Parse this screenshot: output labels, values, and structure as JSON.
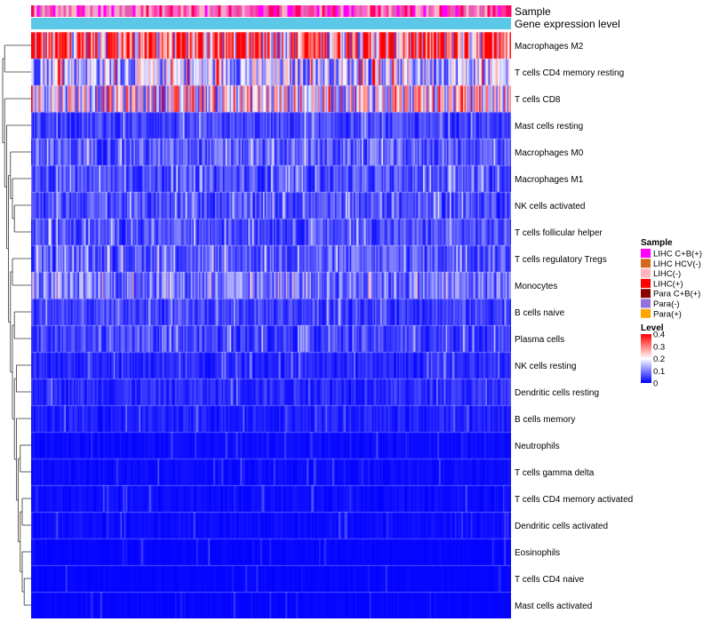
{
  "chart_data": {
    "type": "heatmap",
    "title": "",
    "annotation_tracks": [
      "Sample",
      "Gene expression level"
    ],
    "rows": [
      {
        "label": "Macrophages M2",
        "mean": 0.32
      },
      {
        "label": "T cells CD4 memory resting",
        "mean": 0.15
      },
      {
        "label": "T cells CD8",
        "mean": 0.2
      },
      {
        "label": "Mast cells resting",
        "mean": 0.05
      },
      {
        "label": "Macrophages M0",
        "mean": 0.07
      },
      {
        "label": "Macrophages M1",
        "mean": 0.06
      },
      {
        "label": "NK cells activated",
        "mean": 0.06
      },
      {
        "label": "T cells follicular helper",
        "mean": 0.06
      },
      {
        "label": "T cells regulatory  Tregs",
        "mean": 0.07
      },
      {
        "label": "Monocytes",
        "mean": 0.09
      },
      {
        "label": "B cells naive",
        "mean": 0.05
      },
      {
        "label": "Plasma cells",
        "mean": 0.05
      },
      {
        "label": "NK cells resting",
        "mean": 0.03
      },
      {
        "label": "Dendritic cells resting",
        "mean": 0.035
      },
      {
        "label": "B cells memory",
        "mean": 0.025
      },
      {
        "label": "Neutrophils",
        "mean": 0.01
      },
      {
        "label": "T cells gamma delta",
        "mean": 0.01
      },
      {
        "label": "T cells CD4 memory activated",
        "mean": 0.01
      },
      {
        "label": "Dendritic cells activated",
        "mean": 0.01
      },
      {
        "label": "Eosinophils",
        "mean": 0.005
      },
      {
        "label": "T cells CD4 naive",
        "mean": 0.005
      },
      {
        "label": "Mast cells activated",
        "mean": 0.005
      }
    ],
    "legend_sample": {
      "title": "Sample",
      "entries": [
        {
          "label": "LIHC C+B(+)",
          "color": "#FF00FF"
        },
        {
          "label": "LIHC HCV(-)",
          "color": "#D2691E"
        },
        {
          "label": "LIHC(-)",
          "color": "#FFB6C1"
        },
        {
          "label": "LIHC(+)",
          "color": "#FF0000"
        },
        {
          "label": "Para C+B(+)",
          "color": "#8B0000"
        },
        {
          "label": "Para(-)",
          "color": "#9370DB"
        },
        {
          "label": "Para(+)",
          "color": "#FFA500"
        }
      ]
    },
    "legend_level": {
      "title": "Level",
      "ticks": [
        0.4,
        0.3,
        0.2,
        0.1,
        0
      ],
      "tick_labels": [
        "0.4",
        "0.3",
        "0.2",
        "0.1",
        "0"
      ],
      "range": [
        0,
        0.4
      ],
      "colors": {
        "low": "#0000FF",
        "mid": "#FFFFFF",
        "high": "#FF0000"
      }
    },
    "expression_track_color": "#5BC8E8",
    "sample_track_palette": [
      "#FF00FF",
      "#FF66CC",
      "#FF3399",
      "#FFB6C1",
      "#E55CB0",
      "#F3A6C8",
      "#FF0066"
    ]
  }
}
